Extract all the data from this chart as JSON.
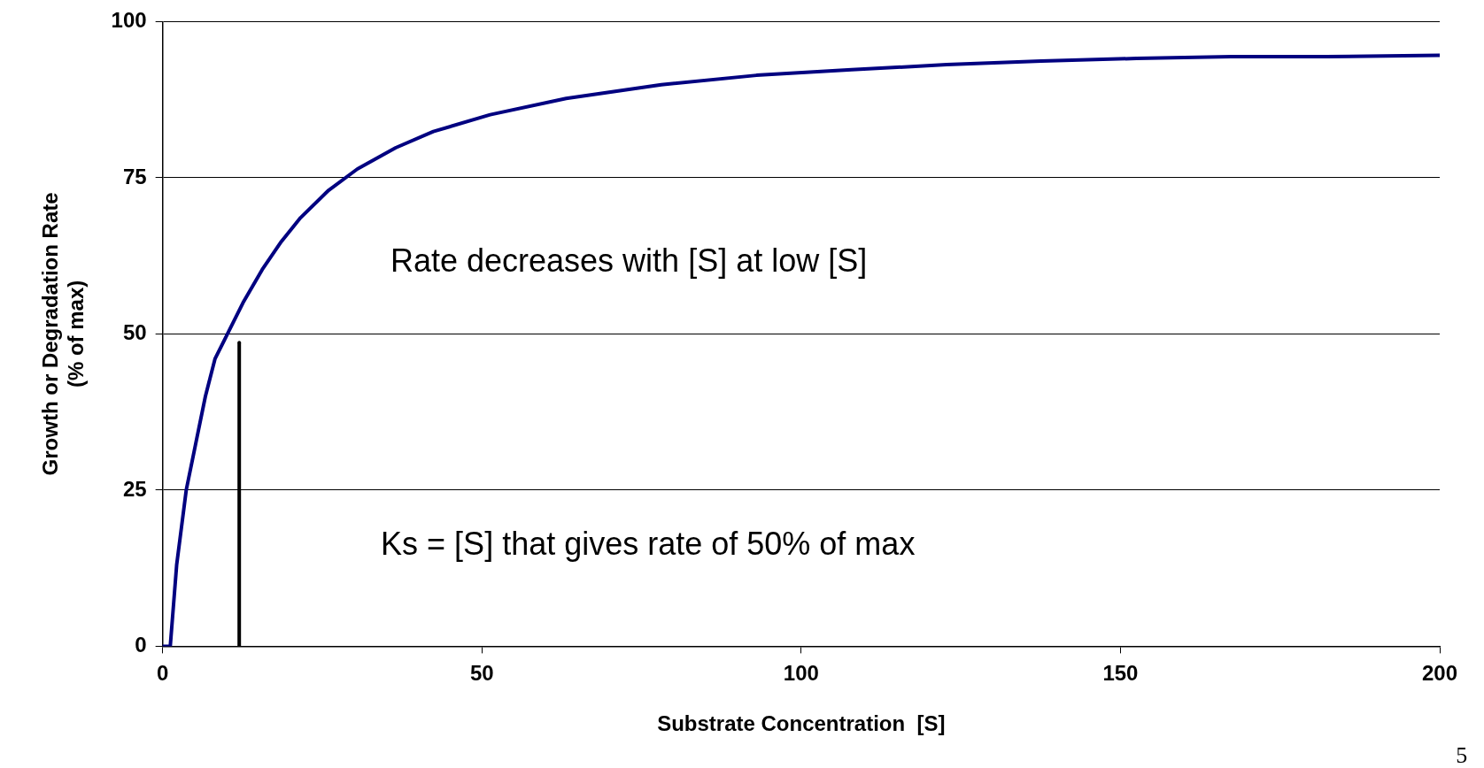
{
  "chart_data": {
    "type": "line",
    "xlabel": "Substrate Concentration  [S]",
    "ylabel": "Growth or Degradation Rate\n(% of max)",
    "xlim": [
      0,
      200
    ],
    "xticks": [
      0,
      50,
      100,
      150,
      200
    ],
    "ylim": [
      0,
      100
    ],
    "yticks": [
      0,
      25,
      50,
      75,
      100
    ],
    "grid": "y",
    "legend": false,
    "marker": "none",
    "line_style": "solid",
    "series": [
      {
        "color": "#000080",
        "x": [
          0,
          1.2,
          2.2,
          3.7,
          5.2,
          6.7,
          8.2,
          10.4,
          12.6,
          15.6,
          18.6,
          21.6,
          26,
          30.5,
          36.5,
          42.4,
          51.3,
          63.2,
          78.1,
          93,
          107.9,
          122.8,
          137.6,
          152.5,
          167.4,
          182.3,
          200
        ],
        "values": [
          0,
          0,
          13,
          25,
          32.5,
          40,
          46,
          50.5,
          55,
          60.3,
          64.8,
          68.6,
          73,
          76.4,
          79.8,
          82.4,
          85.1,
          87.7,
          89.9,
          91.4,
          92.3,
          93.1,
          93.7,
          94.1,
          94.4,
          94.4,
          94.6
        ]
      },
      {
        "color": "#000000",
        "x": [
          12,
          12
        ],
        "values": [
          0,
          48.6
        ]
      }
    ],
    "annotations": [
      "Rate decreases with [S] at low [S]",
      "Ks = [S] that gives rate of 50% of max",
      "5"
    ]
  }
}
